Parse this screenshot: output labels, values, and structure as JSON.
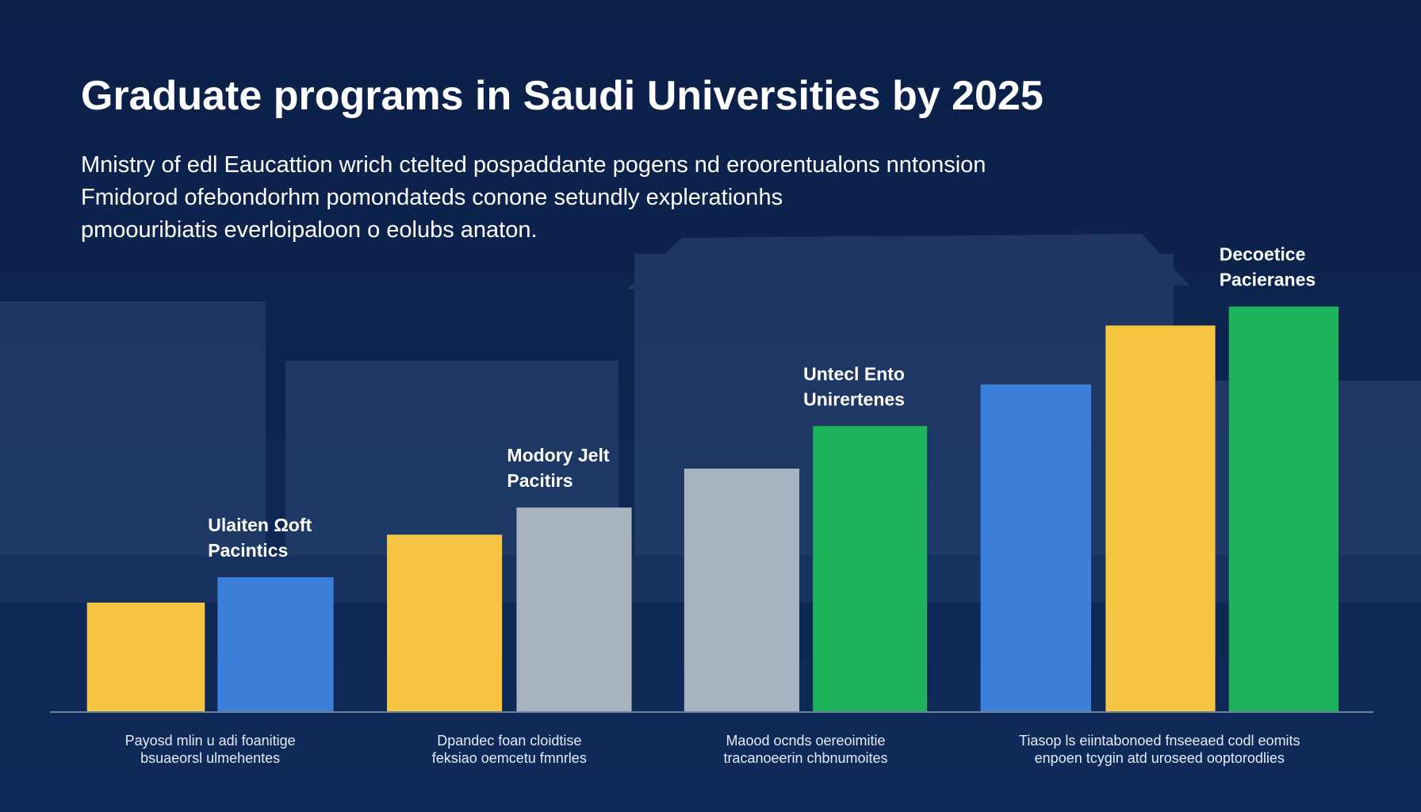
{
  "title": "Graduate programs in Saudi Universities by 2025",
  "subtitle": [
    "Mnistry of edl Eaucattion wrich ctelted pospaddante pogens nd eroorentualons nntonsion",
    "Fmidorod ofebondorhm pomondateds conone setundly explerationhs",
    "pmoouribiatis everloipaloon o eolubs anaton."
  ],
  "chart_data": {
    "type": "bar",
    "ylim": [
      0,
      500
    ],
    "groups": [
      {
        "label": [
          "Payosd mlin u adi foanitige",
          "bsuaeorsl ulmehentes"
        ],
        "bars": [
          {
            "value": 120,
            "color": "#f5c440"
          },
          {
            "value": 148,
            "color": "#3c7fdb",
            "annotation": [
              "Ulaiten Ωoft",
              "Pacintics"
            ]
          }
        ]
      },
      {
        "label": [
          "Dpandec foan cloidtise",
          "feksiao oemcetu fmnrles"
        ],
        "bars": [
          {
            "value": 195,
            "color": "#f5c440"
          },
          {
            "value": 225,
            "color": "#a8b3bf",
            "annotation": [
              "Modory Jelt",
              "Pacitirs"
            ]
          }
        ]
      },
      {
        "label": [
          "Maood ocnds oereoimitie",
          "tracanoeerin chbnumoites"
        ],
        "bars": [
          {
            "value": 268,
            "color": "#a8b3bf"
          },
          {
            "value": 315,
            "color": "#1cb35b",
            "annotation": [
              "Untecl Ento",
              "Unirertenes"
            ]
          }
        ]
      },
      {
        "label": [
          "Tiasop ls eiintabonoed fnseeaed codl eomits",
          "enpoen tcygin atd uroseed ooptorodlies"
        ],
        "bars": [
          {
            "value": 361,
            "color": "#3c7fdb"
          },
          {
            "value": 426,
            "color": "#f5c440"
          },
          {
            "value": 447,
            "color": "#1cb35b",
            "annotation": [
              "Decoetice",
              "Pacieranes"
            ]
          }
        ]
      }
    ]
  }
}
